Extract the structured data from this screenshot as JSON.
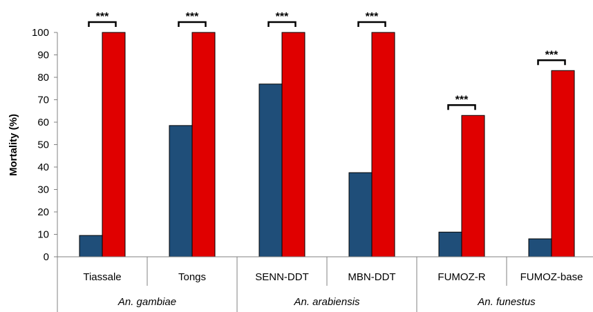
{
  "chart_data": {
    "type": "bar",
    "ylabel": "Mortality (%)",
    "ylim": [
      0,
      100
    ],
    "yticks": [
      0,
      10,
      20,
      30,
      40,
      50,
      60,
      70,
      80,
      90,
      100
    ],
    "grid": false,
    "legend": "none",
    "categories": [
      "Tiassale",
      "Tongs",
      "SENN-DDT",
      "MBN-DDT",
      "FUMOZ-R",
      "FUMOZ-base"
    ],
    "groups": [
      {
        "label": "An. gambiae",
        "categories": [
          "Tiassale",
          "Tongs"
        ]
      },
      {
        "label": "An. arabiensis",
        "categories": [
          "SENN-DDT",
          "MBN-DDT"
        ]
      },
      {
        "label": "An. funestus",
        "categories": [
          "FUMOZ-R",
          "FUMOZ-base"
        ]
      }
    ],
    "series": [
      {
        "values": [
          9.5,
          58.5,
          77,
          37.5,
          11,
          8
        ],
        "color": "#1f4e79"
      },
      {
        "values": [
          100,
          100,
          100,
          100,
          63,
          83
        ],
        "color": "#e00000"
      }
    ],
    "annotations": [
      {
        "category": "Tiassale",
        "text": "***"
      },
      {
        "category": "Tongs",
        "text": "***"
      },
      {
        "category": "SENN-DDT",
        "text": "***"
      },
      {
        "category": "MBN-DDT",
        "text": "***"
      },
      {
        "category": "FUMOZ-R",
        "text": "***"
      },
      {
        "category": "FUMOZ-base",
        "text": "***"
      }
    ]
  }
}
